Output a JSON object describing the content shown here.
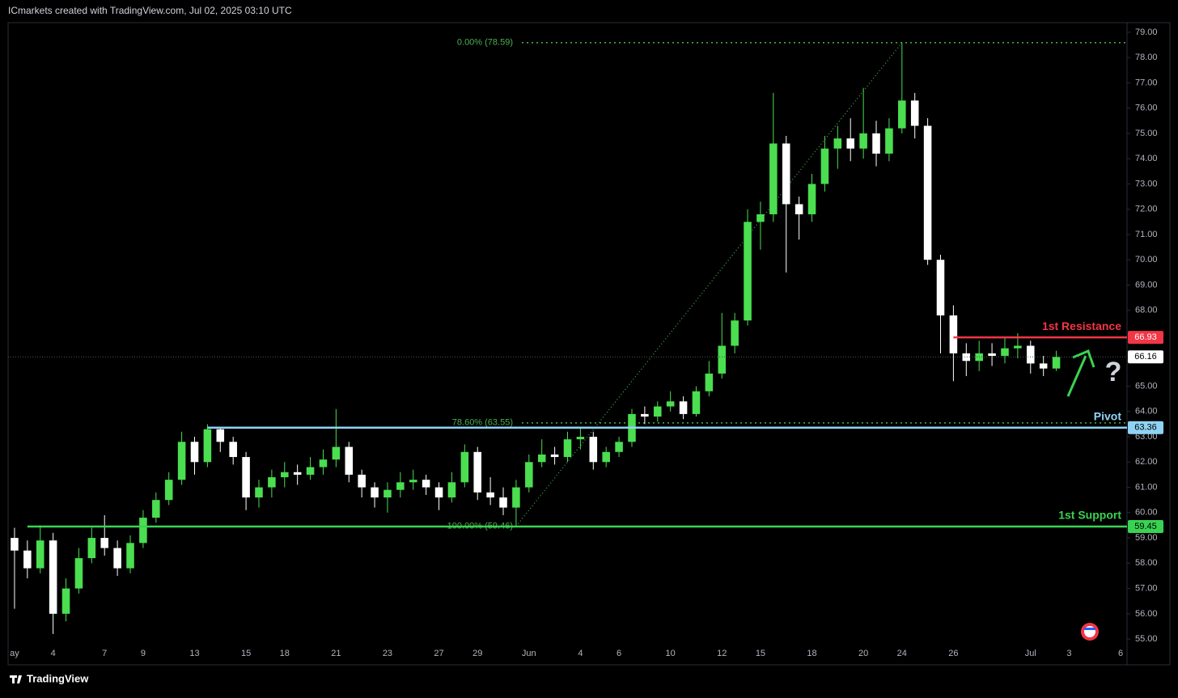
{
  "header": "ICmarkets created with TradingView.com, Jul 02, 2025 03:10 UTC",
  "chart_data": {
    "type": "candlestick",
    "source": "TradingView",
    "up_color": "#4ade50",
    "down_color": "#ffffff",
    "categories": [
      "ay",
      null,
      null,
      "4",
      null,
      null,
      null,
      "7",
      null,
      null,
      "9",
      null,
      null,
      null,
      "13",
      null,
      null,
      null,
      "15",
      null,
      null,
      "18",
      null,
      null,
      null,
      "21",
      null,
      null,
      null,
      "23",
      null,
      null,
      null,
      "27",
      null,
      null,
      "29",
      null,
      null,
      null,
      "Jun",
      null,
      null,
      null,
      "4",
      null,
      null,
      "6",
      null,
      null,
      null,
      "10",
      null,
      null,
      null,
      "12",
      null,
      null,
      "15",
      null,
      null,
      null,
      "18",
      null,
      null,
      null,
      "20",
      null,
      null,
      "24",
      null,
      null,
      null,
      "26",
      null,
      null,
      null,
      null,
      null,
      "Jul",
      null,
      null,
      "3",
      null,
      null,
      null,
      "6"
    ],
    "ohlc": [
      [
        59.0,
        59.4,
        56.2,
        58.5
      ],
      [
        58.5,
        58.9,
        57.4,
        57.8
      ],
      [
        57.8,
        59.5,
        57.6,
        58.9
      ],
      [
        58.9,
        59.2,
        55.2,
        56.0
      ],
      [
        56.0,
        57.4,
        55.7,
        57.0
      ],
      [
        57.0,
        58.6,
        56.8,
        58.2
      ],
      [
        58.2,
        59.4,
        58.0,
        59.0
      ],
      [
        59.0,
        59.9,
        58.3,
        58.6
      ],
      [
        58.6,
        58.9,
        57.5,
        57.8
      ],
      [
        57.8,
        59.1,
        57.6,
        58.8
      ],
      [
        58.8,
        60.1,
        58.6,
        59.8
      ],
      [
        59.8,
        60.8,
        59.6,
        60.5
      ],
      [
        60.5,
        61.6,
        60.3,
        61.3
      ],
      [
        61.3,
        63.2,
        61.1,
        62.8
      ],
      [
        62.8,
        63.0,
        61.5,
        62.0
      ],
      [
        62.0,
        63.5,
        61.8,
        63.3
      ],
      [
        63.3,
        63.4,
        62.4,
        62.8
      ],
      [
        62.8,
        63.0,
        61.9,
        62.2
      ],
      [
        62.2,
        62.4,
        60.1,
        60.6
      ],
      [
        60.6,
        61.3,
        60.2,
        61.0
      ],
      [
        61.0,
        61.7,
        60.6,
        61.4
      ],
      [
        61.4,
        62.0,
        61.0,
        61.6
      ],
      [
        61.6,
        61.9,
        61.1,
        61.5
      ],
      [
        61.5,
        62.2,
        61.3,
        61.8
      ],
      [
        61.8,
        62.5,
        61.5,
        62.1
      ],
      [
        62.1,
        64.1,
        61.8,
        62.6
      ],
      [
        62.6,
        62.8,
        61.2,
        61.5
      ],
      [
        61.5,
        61.7,
        60.6,
        61.0
      ],
      [
        61.0,
        61.2,
        60.2,
        60.6
      ],
      [
        60.6,
        61.2,
        60.0,
        60.9
      ],
      [
        60.9,
        61.6,
        60.6,
        61.2
      ],
      [
        61.2,
        61.7,
        60.9,
        61.3
      ],
      [
        61.3,
        61.5,
        60.7,
        61.0
      ],
      [
        61.0,
        61.2,
        60.1,
        60.6
      ],
      [
        60.6,
        61.6,
        60.4,
        61.2
      ],
      [
        61.2,
        62.7,
        61.0,
        62.4
      ],
      [
        62.4,
        62.6,
        60.5,
        60.8
      ],
      [
        60.8,
        61.4,
        60.3,
        60.6
      ],
      [
        60.6,
        61.0,
        59.9,
        60.2
      ],
      [
        60.2,
        61.3,
        59.46,
        61.0
      ],
      [
        61.0,
        62.3,
        60.8,
        62.0
      ],
      [
        62.0,
        62.9,
        61.8,
        62.3
      ],
      [
        62.3,
        62.6,
        61.9,
        62.2
      ],
      [
        62.2,
        63.2,
        62.0,
        62.9
      ],
      [
        62.9,
        63.4,
        62.5,
        63.0
      ],
      [
        63.0,
        63.2,
        61.7,
        62.0
      ],
      [
        62.0,
        62.6,
        61.8,
        62.4
      ],
      [
        62.4,
        63.0,
        62.2,
        62.8
      ],
      [
        62.8,
        64.1,
        62.6,
        63.9
      ],
      [
        63.9,
        64.2,
        63.5,
        63.8
      ],
      [
        63.8,
        64.4,
        63.6,
        64.2
      ],
      [
        64.2,
        64.8,
        64.0,
        64.4
      ],
      [
        64.4,
        64.6,
        63.7,
        63.9
      ],
      [
        63.9,
        65.0,
        63.8,
        64.8
      ],
      [
        64.8,
        66.0,
        64.6,
        65.5
      ],
      [
        65.5,
        67.9,
        65.3,
        66.6
      ],
      [
        66.6,
        67.9,
        66.3,
        67.6
      ],
      [
        67.6,
        72.0,
        67.4,
        71.5
      ],
      [
        71.5,
        72.3,
        70.4,
        71.8
      ],
      [
        71.8,
        76.6,
        71.5,
        74.6
      ],
      [
        74.6,
        74.9,
        69.5,
        72.2
      ],
      [
        72.2,
        72.5,
        70.8,
        71.8
      ],
      [
        71.8,
        73.4,
        71.5,
        73.0
      ],
      [
        73.0,
        74.9,
        72.7,
        74.4
      ],
      [
        74.4,
        75.3,
        73.6,
        74.8
      ],
      [
        74.8,
        75.6,
        73.9,
        74.4
      ],
      [
        74.4,
        76.8,
        74.0,
        75.0
      ],
      [
        75.0,
        75.5,
        73.7,
        74.2
      ],
      [
        74.2,
        75.6,
        73.9,
        75.2
      ],
      [
        75.2,
        78.59,
        75.0,
        76.3
      ],
      [
        76.3,
        76.6,
        74.8,
        75.3
      ],
      [
        75.3,
        75.6,
        69.8,
        70.0
      ],
      [
        70.0,
        70.2,
        66.3,
        67.8
      ],
      [
        67.8,
        68.2,
        65.2,
        66.3
      ],
      [
        66.3,
        66.7,
        65.4,
        66.0
      ],
      [
        66.0,
        66.8,
        65.6,
        66.3
      ],
      [
        66.3,
        66.7,
        65.8,
        66.2
      ],
      [
        66.2,
        66.9,
        65.9,
        66.5
      ],
      [
        66.5,
        67.1,
        66.1,
        66.6
      ],
      [
        66.6,
        66.8,
        65.5,
        65.9
      ],
      [
        65.9,
        66.2,
        65.4,
        65.7
      ],
      [
        65.7,
        66.4,
        65.6,
        66.16
      ],
      null,
      null,
      null,
      null,
      null
    ],
    "ylim": [
      53.98,
      79.38
    ],
    "yticks": [
      {
        "value": 55,
        "label": "55.00"
      },
      {
        "value": 56,
        "label": "56.00"
      },
      {
        "value": 57,
        "label": "57.00"
      },
      {
        "value": 58,
        "label": "58.00"
      },
      {
        "value": 59,
        "label": "59.00"
      },
      {
        "value": 60,
        "label": "60.00"
      },
      {
        "value": 61,
        "label": "61.00"
      },
      {
        "value": 62,
        "label": "62.00"
      },
      {
        "value": 63,
        "label": "63.00"
      },
      {
        "value": 64,
        "label": "64.00"
      },
      {
        "value": 65,
        "label": "65.00"
      },
      {
        "value": 66,
        "label": "66.00"
      },
      {
        "value": 67,
        "label": "67.00"
      },
      {
        "value": 68,
        "label": "68.00"
      },
      {
        "value": 69,
        "label": "69.00"
      },
      {
        "value": 70,
        "label": "70.00"
      },
      {
        "value": 71,
        "label": "71.00"
      },
      {
        "value": 72,
        "label": "72.00"
      },
      {
        "value": 73,
        "label": "73.00"
      },
      {
        "value": 74,
        "label": "74.00"
      },
      {
        "value": 75,
        "label": "75.00"
      },
      {
        "value": 76,
        "label": "76.00"
      },
      {
        "value": 77,
        "label": "77.00"
      },
      {
        "value": 78,
        "label": "78.00"
      },
      {
        "value": 79,
        "label": "79.00"
      }
    ],
    "grid": false,
    "levels": [
      {
        "name": "1st Resistance",
        "value": 66.93,
        "color": "#f23645"
      },
      {
        "name": "Pivot",
        "value": 63.36,
        "color": "#8fd3f4"
      },
      {
        "name": "1st Support",
        "value": 59.45,
        "color": "#39d353"
      }
    ],
    "fib": {
      "color": "#4caf50",
      "levels": [
        {
          "level": 0,
          "price": 78.59,
          "label": "0.00% (78.59)"
        },
        {
          "level": 78.6,
          "price": 63.55,
          "label": "78.60% (63.55)"
        },
        {
          "level": 100,
          "price": 59.46,
          "label": "100.00% (59.46)"
        }
      ]
    }
  }
}
